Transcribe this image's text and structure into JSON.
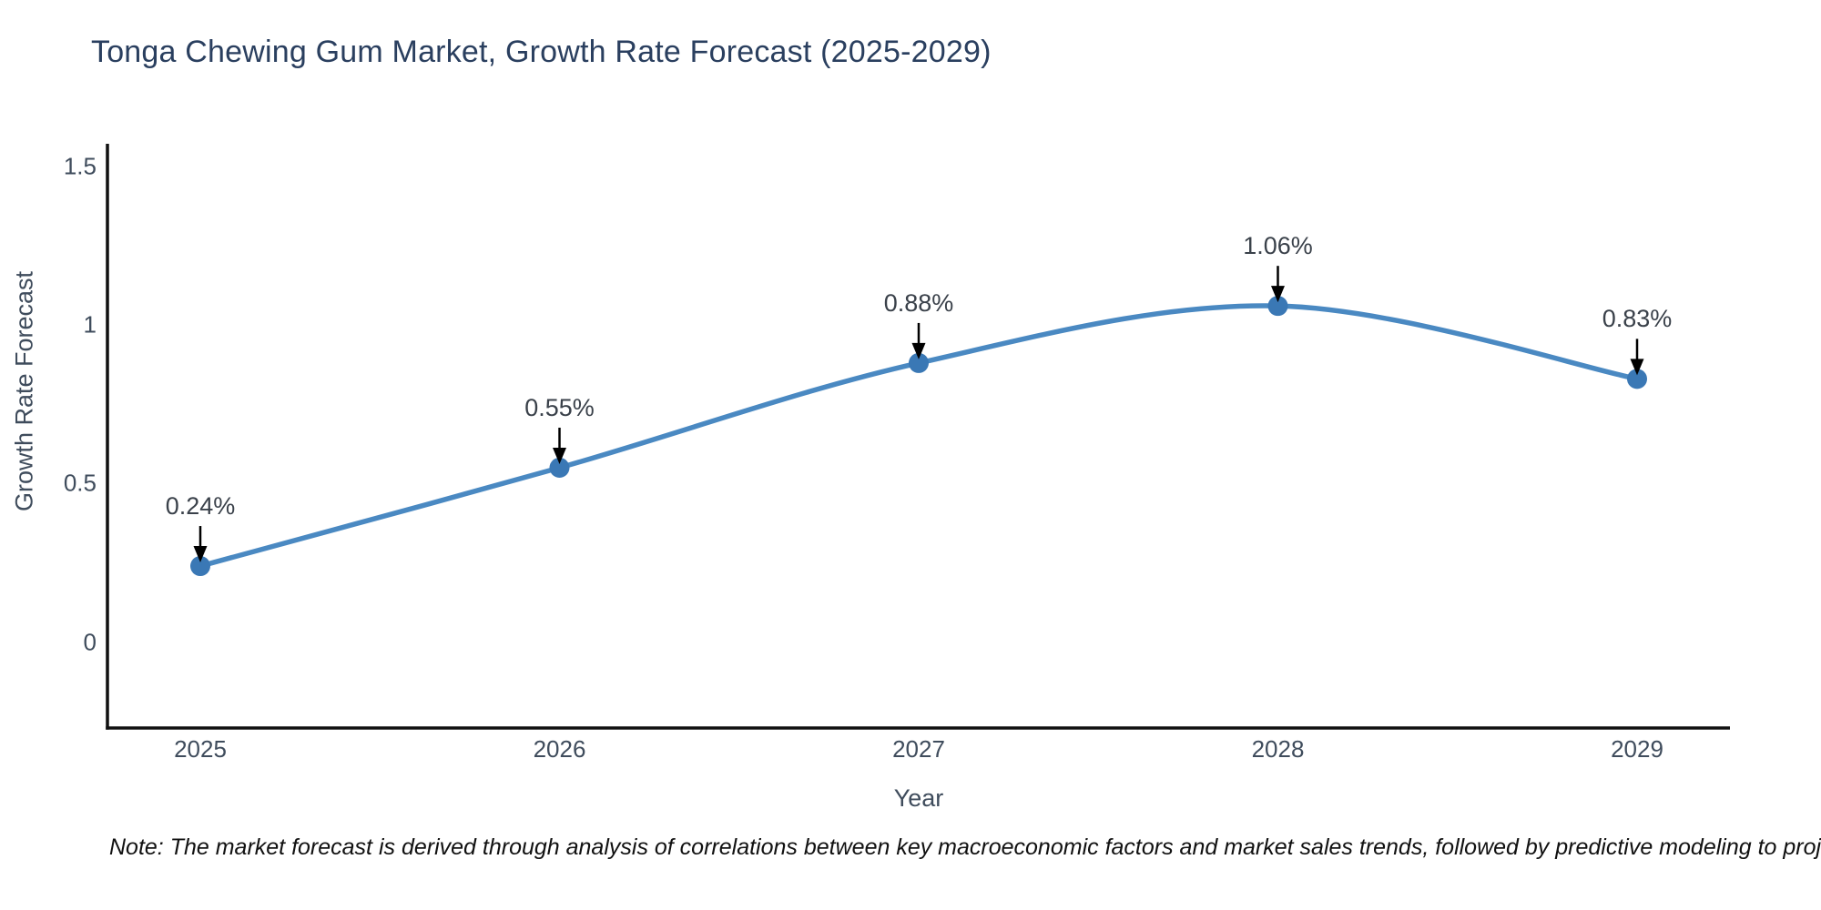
{
  "title": "Tonga Chewing Gum Market, Growth Rate Forecast (2025-2029)",
  "note": "Note: The market forecast is derived through analysis of correlations between key macroeconomic factors and market sales trends, followed by predictive modeling to project future sales",
  "chart_data": {
    "type": "line",
    "title": "Tonga Chewing Gum Market, Growth Rate Forecast (2025-2029)",
    "xlabel": "Year",
    "ylabel": "Growth Rate Forecast",
    "categories": [
      "2025",
      "2026",
      "2027",
      "2028",
      "2029"
    ],
    "x": [
      2025,
      2026,
      2027,
      2028,
      2029
    ],
    "series": [
      {
        "name": "Growth Rate Forecast",
        "values": [
          0.24,
          0.55,
          0.88,
          1.06,
          0.83
        ]
      }
    ],
    "point_labels": [
      "0.24%",
      "0.55%",
      "0.88%",
      "1.06%",
      "0.83%"
    ],
    "yticks": [
      0,
      0.5,
      1,
      1.5
    ],
    "ytick_labels": [
      "0",
      "0.5",
      "1",
      "1.5"
    ],
    "ylim": [
      -0.27,
      1.57
    ],
    "grid": false,
    "legend": "none",
    "line_style": "spline",
    "marker": "circle",
    "annotation_arrows": true,
    "colors": {
      "line": "#4a89c2",
      "marker": "#3a78b5",
      "arrow": "#000000",
      "axis_line": "#111111",
      "title_text": "#2a3f5f",
      "axis_text": "#3f4c5c",
      "annotation_text": "#3a414a",
      "note_text": "#111111",
      "background": "#ffffff"
    }
  }
}
